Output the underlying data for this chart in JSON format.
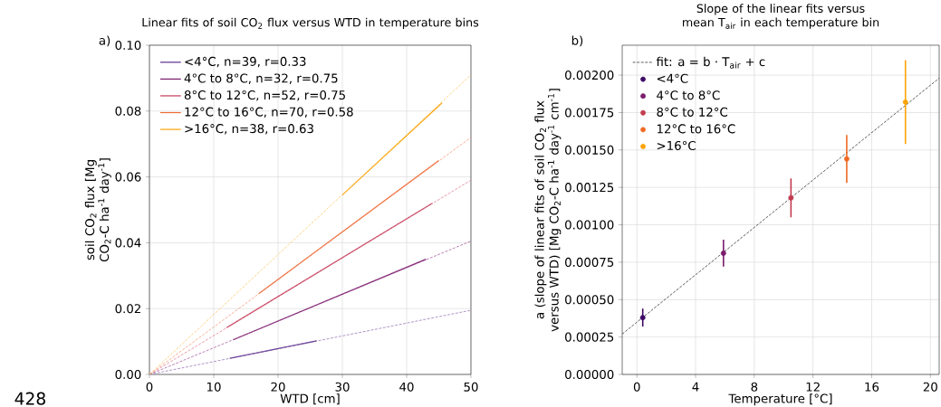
{
  "chart_data": [
    {
      "type": "line",
      "title": "Linear fits of soil CO$_{2}$ flux versus WTD in temperature bins",
      "xlabel": "WTD [cm]",
      "ylabel": "soil CO$_{2}$ flux [Mg CO$_{2}$-C ha$^{-1}$ day$^{-1}$]",
      "xlim": [
        0,
        50
      ],
      "ylim": [
        0,
        0.1
      ],
      "xticks": [
        0,
        10,
        20,
        30,
        40,
        50
      ],
      "yticks": [
        {
          "value": 0,
          "label": "0.00"
        },
        {
          "value": 0.02,
          "label": "0.02"
        },
        {
          "value": 0.04,
          "label": "0.04"
        },
        {
          "value": 0.06,
          "label": "0.06"
        },
        {
          "value": 0.08,
          "label": "0.08"
        },
        {
          "value": 0.1,
          "label": "0.10"
        }
      ],
      "grid": true,
      "legend": "top left",
      "line_style": "solid",
      "annotations": [
        "a)",
        "428"
      ],
      "series": [
        {
          "name": "<4°C, n=39, r=0.33",
          "color": "#5a2d8c",
          "x": [
            12.5,
            26
          ],
          "values": [
            0.0049,
            0.0102
          ]
        },
        {
          "name": "4°C to 8°C, n=32, r=0.75",
          "color": "#7a1d6d",
          "x": [
            13,
            43
          ],
          "values": [
            0.0105,
            0.035
          ]
        },
        {
          "name": "8°C to 12°C, n=52, r=0.75",
          "color": "#c23c5a",
          "x": [
            12,
            44
          ],
          "values": [
            0.0142,
            0.052
          ]
        },
        {
          "name": "12°C to 16°C, n=70, r=0.58",
          "color": "#ee6a34",
          "x": [
            17,
            45
          ],
          "values": [
            0.0245,
            0.065
          ]
        },
        {
          "name": ">16°C, n=38, r=0.63",
          "color": "#fba40a",
          "x": [
            30,
            45.5
          ],
          "values": [
            0.0545,
            0.0825
          ]
        },
        {
          "color": "#9a7ab8",
          "line_style": "dashed",
          "x": [
            0,
            50
          ],
          "values": [
            0,
            0.0195
          ]
        },
        {
          "color": "#a8609f",
          "line_style": "dashed",
          "x": [
            0,
            50
          ],
          "values": [
            0,
            0.0405
          ]
        },
        {
          "color": "#e07f92",
          "line_style": "dashed",
          "x": [
            0,
            50
          ],
          "values": [
            0,
            0.059
          ]
        },
        {
          "color": "#f59a78",
          "line_style": "dashed",
          "x": [
            0,
            50
          ],
          "values": [
            0,
            0.072
          ]
        },
        {
          "color": "#fcc86a",
          "line_style": "dashed",
          "x": [
            0,
            50
          ],
          "values": [
            0,
            0.091
          ]
        }
      ]
    },
    {
      "type": "scatter",
      "title": "Slope of the linear fits versus mean T$_{air}$ in each temperature bin",
      "xlabel": "Temperature [°C]",
      "ylabel": "a (slope of linear fits of soil CO$_{2}$ flux versus WTD) [Mg CO$_{2}$-C ha$^{-1}$ day$^{-1}$ cm$^{-1}$]",
      "xlim": [
        -1,
        20.6
      ],
      "ylim": [
        0,
        0.0022
      ],
      "xticks": [
        0,
        4,
        8,
        12,
        16,
        20
      ],
      "yticks": [
        {
          "value": 0,
          "label": "0.00000"
        },
        {
          "value": 0.00025,
          "label": "0.00025"
        },
        {
          "value": 0.0005,
          "label": "0.00050"
        },
        {
          "value": 0.00075,
          "label": "0.00075"
        },
        {
          "value": 0.001,
          "label": "0.00100"
        },
        {
          "value": 0.00125,
          "label": "0.00125"
        },
        {
          "value": 0.0015,
          "label": "0.00150"
        },
        {
          "value": 0.00175,
          "label": "0.00175"
        },
        {
          "value": 0.002,
          "label": "0.00200"
        }
      ],
      "grid": true,
      "legend": "top left",
      "annotations": [
        "b)"
      ],
      "series": [
        {
          "name": "fit: a = b · T$_{air}$ + c",
          "type": "line",
          "marker": "none",
          "line_style": "dashed",
          "color": "#333333",
          "x": [
            -1,
            20.6
          ],
          "values": [
            0.00027,
            0.00198
          ]
        },
        {
          "name": "<4°C",
          "marker": "circle",
          "color": "#3d0965",
          "x": [
            0.4
          ],
          "values": [
            0.00038
          ],
          "errors": [
            6e-05
          ]
        },
        {
          "name": "4°C to 8°C",
          "marker": "circle",
          "color": "#7a1d6d",
          "x": [
            5.9
          ],
          "values": [
            0.00081
          ],
          "errors": [
            9e-05
          ]
        },
        {
          "name": "8°C to 12°C",
          "marker": "circle",
          "color": "#c23c4f",
          "x": [
            10.5
          ],
          "values": [
            0.00118
          ],
          "errors": [
            0.00013
          ]
        },
        {
          "name": "12°C to 16°C",
          "marker": "circle",
          "color": "#ee6a24",
          "x": [
            14.3
          ],
          "values": [
            0.00144
          ],
          "errors": [
            0.00016
          ]
        },
        {
          "name": ">16°C",
          "marker": "circle",
          "color": "#fba40a",
          "x": [
            18.3
          ],
          "values": [
            0.00182
          ],
          "errors": [
            0.00028
          ]
        }
      ]
    }
  ]
}
